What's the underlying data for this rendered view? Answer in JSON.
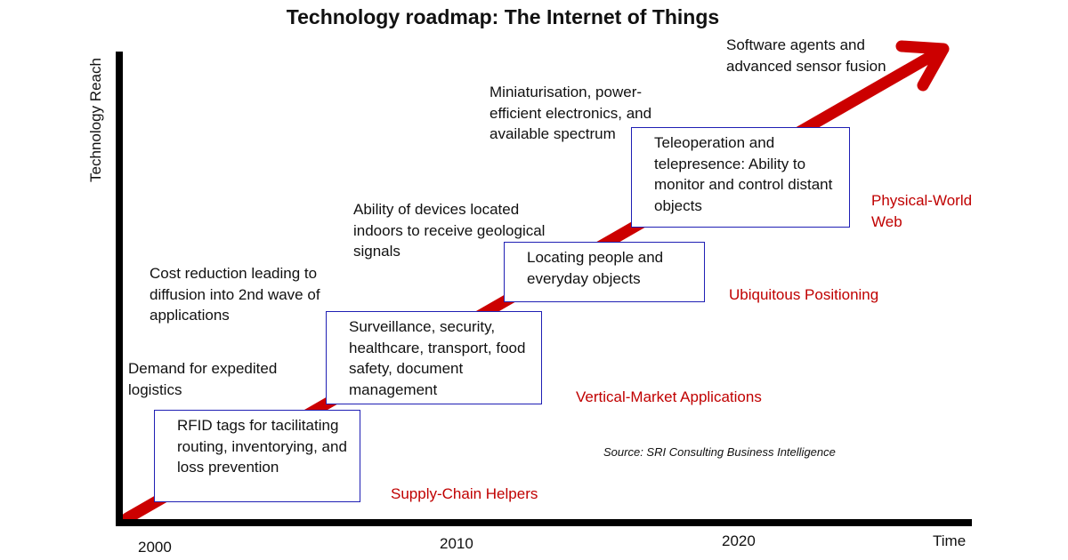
{
  "title": "Technology roadmap: The Internet of Things",
  "y_axis_label": "Technology Reach",
  "x_axis_label": "Time",
  "x_ticks": [
    "2000",
    "2010",
    "2020"
  ],
  "drivers": [
    "Demand for expedited logistics",
    "Cost reduction leading to diffusion into 2nd wave of applications",
    "Ability of devices located indoors to receive geological signals",
    "Miniaturisation, power-efficient electronics, and available spectrum",
    "Software agents and advanced sensor fusion"
  ],
  "applications": [
    "RFID tags for tacilitating routing, inventorying, and loss prevention",
    "Surveillance, security, healthcare, transport, food safety, document management",
    "Locating people and everyday objects",
    "Teleoperation and telepresence: Ability to monitor and control distant objects"
  ],
  "stages": [
    "Supply-Chain Helpers",
    "Vertical-Market Applications",
    "Ubiquitous Positioning",
    "Physical-World Web"
  ],
  "source": "Source: SRI Consulting Business Intelligence",
  "colors": {
    "arrow": "#cc0000",
    "axis": "#000000",
    "box_border": "#1f1fb4",
    "stage_text": "#c00000"
  }
}
